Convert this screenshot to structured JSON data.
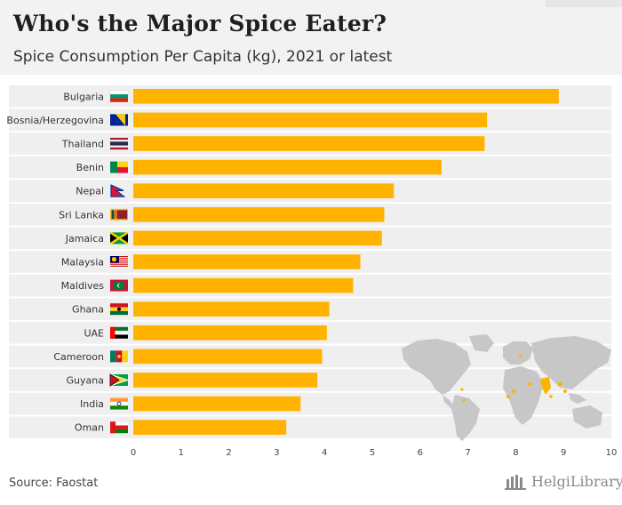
{
  "header": {
    "title": "Who's the Major Spice Eater?",
    "subtitle": "Spice Consumption Per Capita (kg), 2021 or latest"
  },
  "footer": {
    "source": "Source: Faostat",
    "brand": "HelgiLibrary."
  },
  "colors": {
    "bar": "#ffb300",
    "band": "#efefef",
    "map_land": "#c7c7c7",
    "map_highlight": "#ffb300"
  },
  "chart_data": {
    "type": "bar",
    "orientation": "horizontal",
    "title": "Who's the Major Spice Eater?",
    "subtitle": "Spice Consumption Per Capita (kg), 2021 or latest",
    "xlabel": "",
    "ylabel": "",
    "xlim": [
      0,
      10
    ],
    "xticks": [
      0,
      1,
      2,
      3,
      4,
      5,
      6,
      7,
      8,
      9,
      10
    ],
    "grid": false,
    "categories": [
      "Bulgaria",
      "Bosnia/Herzegovina",
      "Thailand",
      "Benin",
      "Nepal",
      "Sri Lanka",
      "Jamaica",
      "Malaysia",
      "Maldives",
      "Ghana",
      "UAE",
      "Cameroon",
      "Guyana",
      "India",
      "Oman"
    ],
    "values": [
      8.9,
      7.4,
      7.35,
      6.45,
      5.45,
      5.25,
      5.2,
      4.75,
      4.6,
      4.1,
      4.05,
      3.95,
      3.85,
      3.5,
      3.2
    ],
    "flags": [
      "flag-bulgaria",
      "flag-bosnia",
      "flag-thailand",
      "flag-benin",
      "flag-nepal",
      "flag-srilanka",
      "flag-jamaica",
      "flag-malaysia",
      "flag-maldives",
      "flag-ghana",
      "flag-uae",
      "flag-cameroon",
      "flag-guyana",
      "flag-india",
      "flag-oman"
    ]
  }
}
